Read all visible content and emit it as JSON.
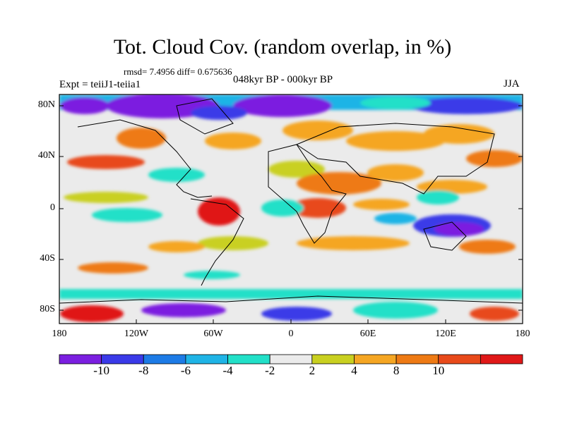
{
  "title": "Tot. Cloud Cov. (random overlap, in %)",
  "stats": "rmsd= 7.4956 diff= 0.675636",
  "experiment": "Expt = teiiJ1-teiia1",
  "period": "048kyr BP - 000kyr BP",
  "season": "JJA",
  "lat_labels": [
    "80N",
    "40N",
    "0",
    "40S",
    "80S"
  ],
  "lon_labels": [
    "180",
    "120W",
    "60W",
    "0",
    "60E",
    "120E",
    "180"
  ],
  "colorbar": {
    "labels": [
      "-10",
      "-8",
      "-6",
      "-4",
      "-2",
      "2",
      "4",
      "8",
      "10"
    ],
    "colors": [
      "#7b1fe0",
      "#3a3ae8",
      "#1d7be6",
      "#1fb4e6",
      "#22e0c8",
      "#ebebeb",
      "#c9d020",
      "#f5a623",
      "#ee7a14",
      "#e84a1a",
      "#e01818"
    ]
  }
}
